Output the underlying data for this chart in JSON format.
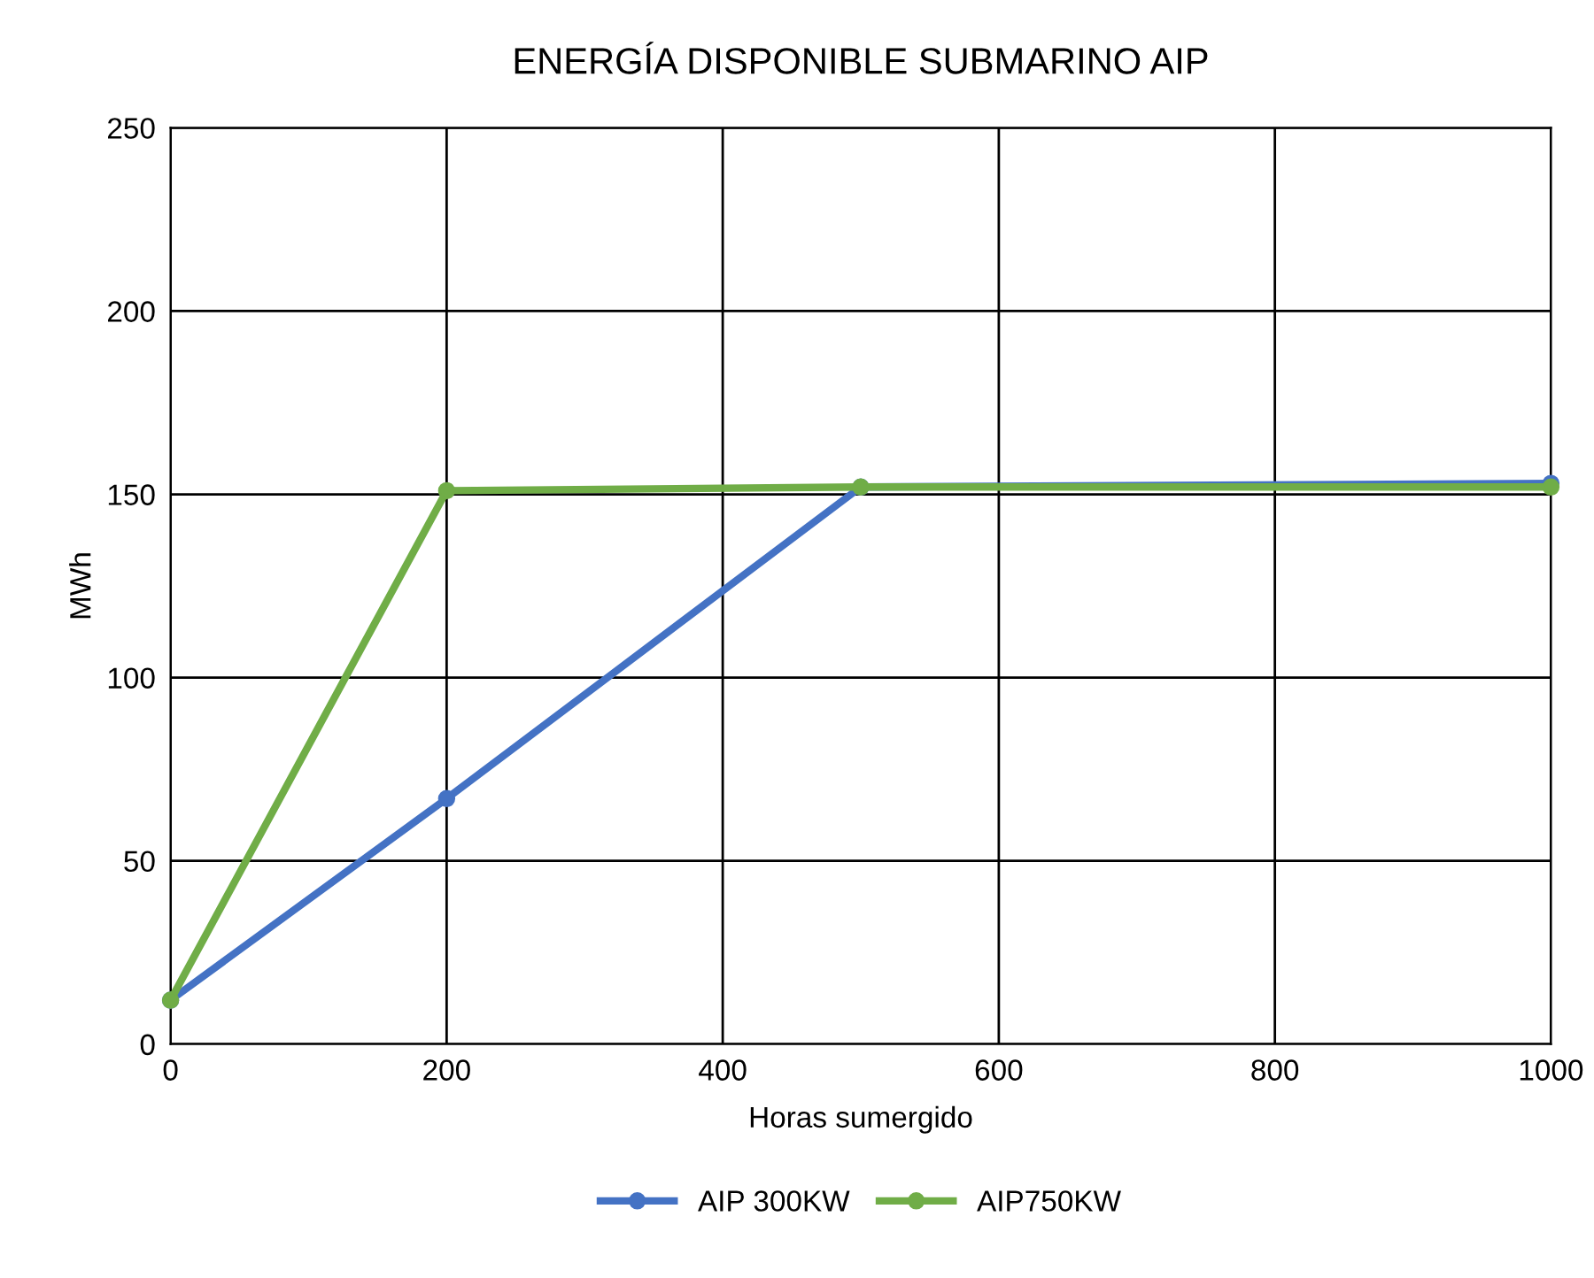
{
  "chart_data": {
    "type": "line",
    "title": "ENERGÍA DISPONIBLE SUBMARINO AIP",
    "xlabel": "Horas sumergido",
    "ylabel": "MWh",
    "series": [
      {
        "name": "AIP 300KW",
        "color": "#4472c4",
        "x": [
          0,
          200,
          500,
          1000
        ],
        "values": [
          12,
          67,
          152,
          153
        ]
      },
      {
        "name": "AIP750KW",
        "color": "#70ad47",
        "x": [
          0,
          200,
          500,
          1000
        ],
        "values": [
          12,
          151,
          152,
          152
        ]
      }
    ],
    "xlim": [
      0,
      1000
    ],
    "xticks": [
      0,
      200,
      400,
      600,
      800,
      1000
    ],
    "ylim": [
      0,
      250
    ],
    "yticks": [
      0,
      50,
      100,
      150,
      200,
      250
    ],
    "grid": true,
    "legend": "bottom",
    "marker": "circle",
    "line_style": "solid"
  }
}
